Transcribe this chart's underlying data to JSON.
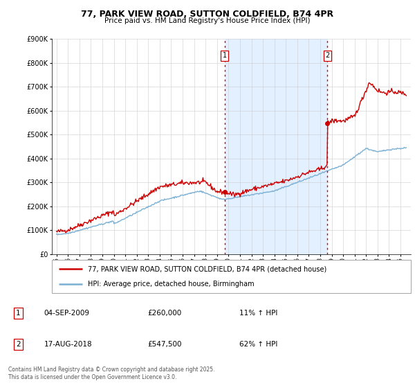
{
  "title1": "77, PARK VIEW ROAD, SUTTON COLDFIELD, B74 4PR",
  "title2": "Price paid vs. HM Land Registry's House Price Index (HPI)",
  "legend_label1": "77, PARK VIEW ROAD, SUTTON COLDFIELD, B74 4PR (detached house)",
  "legend_label2": "HPI: Average price, detached house, Birmingham",
  "line1_color": "#cc0000",
  "line2_color": "#7ab0d4",
  "shaded_color": "#ddeeff",
  "vline_color": "#cc0000",
  "sale1_date": 2009.67,
  "sale1_price": 260000,
  "sale2_date": 2018.63,
  "sale2_price": 547500,
  "annotation1_date": "04-SEP-2009",
  "annotation1_price": "£260,000",
  "annotation1_hpi": "11% ↑ HPI",
  "annotation2_date": "17-AUG-2018",
  "annotation2_price": "£547,500",
  "annotation2_hpi": "62% ↑ HPI",
  "ylim_min": 0,
  "ylim_max": 900000,
  "plot_bg_color": "#ffffff",
  "grid_color": "#cccccc",
  "footnote": "Contains HM Land Registry data © Crown copyright and database right 2025.\nThis data is licensed under the Open Government Licence v3.0."
}
